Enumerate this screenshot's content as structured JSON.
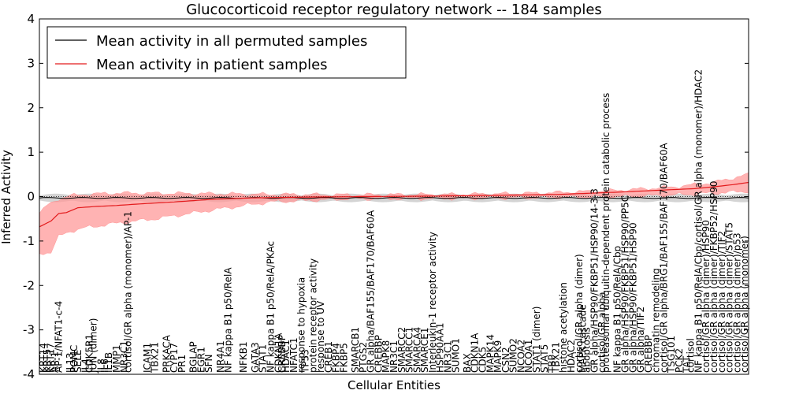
{
  "chart_data": {
    "type": "line",
    "title": "Glucocorticoid receptor regulatory network -- 184 samples",
    "xlabel": "Cellular Entities",
    "ylabel": "Inferred Activity",
    "ylim": [
      -4,
      4
    ],
    "yticks": [
      "-4",
      "-3",
      "-2",
      "-1",
      "0",
      "1",
      "2",
      "3",
      "4"
    ],
    "grid": false,
    "legend_position": "upper-left",
    "colors": {
      "permuted": "#000000",
      "patient": "#e31a1c",
      "patient_band": "#ff9a9a",
      "permuted_band": "#cfcfcf"
    },
    "series": [
      {
        "name": "Mean activity in all permuted samples",
        "mean": -0.03,
        "band": 0.08
      },
      {
        "name": "Mean activity in patient samples",
        "control_points": [
          [
            0,
            -0.68
          ],
          [
            3,
            -0.55
          ],
          [
            5,
            -0.38
          ],
          [
            7,
            -0.36
          ],
          [
            10,
            -0.25
          ],
          [
            15,
            -0.22
          ],
          [
            20,
            -0.2
          ],
          [
            25,
            -0.17
          ],
          [
            35,
            -0.12
          ],
          [
            45,
            -0.06
          ],
          [
            55,
            -0.03
          ],
          [
            70,
            -0.01
          ],
          [
            85,
            0.0
          ],
          [
            100,
            0.01
          ],
          [
            120,
            0.03
          ],
          [
            135,
            0.05
          ],
          [
            150,
            0.1
          ],
          [
            160,
            0.14
          ],
          [
            170,
            0.18
          ],
          [
            175,
            0.22
          ],
          [
            180,
            0.27
          ],
          [
            184,
            0.32
          ]
        ],
        "band_upper": [
          [
            0,
            -0.38
          ],
          [
            2,
            -0.2
          ],
          [
            5,
            -0.05
          ],
          [
            8,
            0.02
          ],
          [
            12,
            0.05
          ],
          [
            20,
            0.08
          ],
          [
            40,
            0.07
          ],
          [
            60,
            0.05
          ],
          [
            80,
            0.04
          ],
          [
            110,
            0.05
          ],
          [
            130,
            0.08
          ],
          [
            150,
            0.14
          ],
          [
            165,
            0.22
          ],
          [
            175,
            0.32
          ],
          [
            184,
            0.5
          ]
        ],
        "band_lower": [
          [
            0,
            -1.28
          ],
          [
            3,
            -1.25
          ],
          [
            5,
            -0.9
          ],
          [
            8,
            -0.78
          ],
          [
            12,
            -0.7
          ],
          [
            20,
            -0.6
          ],
          [
            30,
            -0.5
          ],
          [
            45,
            -0.3
          ],
          [
            60,
            -0.12
          ],
          [
            80,
            -0.05
          ],
          [
            110,
            -0.04
          ],
          [
            130,
            -0.02
          ],
          [
            150,
            0.0
          ],
          [
            165,
            0.04
          ],
          [
            175,
            0.08
          ],
          [
            184,
            0.12
          ]
        ]
      }
    ],
    "x_count": 184,
    "x_tick_labels": [
      {
        "i": 1,
        "label": "KRT14"
      },
      {
        "i": 2,
        "label": "KRT5"
      },
      {
        "i": 3,
        "label": "KRT17"
      },
      {
        "i": 4,
        "label": "AP-1"
      },
      {
        "i": 5,
        "label": "AP-1/NFAT1-c-4"
      },
      {
        "i": 8,
        "label": "IL13"
      },
      {
        "i": 9,
        "label": "POMC"
      },
      {
        "i": 10,
        "label": "SELE"
      },
      {
        "i": 12,
        "label": "IL4"
      },
      {
        "i": 13,
        "label": "CDK5R1"
      },
      {
        "i": 14,
        "label": "JUN (dimer)"
      },
      {
        "i": 16,
        "label": "IL8"
      },
      {
        "i": 17,
        "label": "IL6"
      },
      {
        "i": 18,
        "label": "IL1B"
      },
      {
        "i": 20,
        "label": "MMP1"
      },
      {
        "i": 22,
        "label": "NR3C1"
      },
      {
        "i": 23,
        "label": "cortisol/GR alpha (monomer)/AP-1"
      },
      {
        "i": 28,
        "label": "ICAM1"
      },
      {
        "i": 30,
        "label": "TBX21"
      },
      {
        "i": 33,
        "label": "PRKACA"
      },
      {
        "i": 35,
        "label": "CYP17"
      },
      {
        "i": 37,
        "label": "PR1"
      },
      {
        "i": 40,
        "label": "BGLAP"
      },
      {
        "i": 42,
        "label": "EGR1"
      },
      {
        "i": 44,
        "label": "SFN"
      },
      {
        "i": 47,
        "label": "NR4A1"
      },
      {
        "i": 49,
        "label": "NF kappa B1 p50/RelA"
      },
      {
        "i": 53,
        "label": "NFKB1"
      },
      {
        "i": 56,
        "label": "GATA3"
      },
      {
        "i": 58,
        "label": "STAT1"
      },
      {
        "i": 60,
        "label": "NF kappa B1 p50/RelA/PKAc"
      },
      {
        "i": 62,
        "label": "CDKN1A"
      },
      {
        "i": 63,
        "label": "CREBBP"
      },
      {
        "i": 64,
        "label": "HDAC1"
      },
      {
        "i": 66,
        "label": "NFATC1"
      },
      {
        "i": 68,
        "label": "response to hypoxia"
      },
      {
        "i": 69,
        "label": "TP53"
      },
      {
        "i": 71,
        "label": "protein receptor activity"
      },
      {
        "i": 73,
        "label": "response to UV"
      },
      {
        "i": 75,
        "label": "CREB1"
      },
      {
        "i": 77,
        "label": "FKBP4"
      },
      {
        "i": 79,
        "label": "FKBP5"
      },
      {
        "i": 82,
        "label": "SMARCB1"
      },
      {
        "i": 84,
        "label": "PTGS2"
      },
      {
        "i": 86,
        "label": "GR alpha/BAF155/BAF170/BAF60A"
      },
      {
        "i": 88,
        "label": "CREBBP"
      },
      {
        "i": 90,
        "label": "MAPK8"
      },
      {
        "i": 92,
        "label": "NR3C1"
      },
      {
        "i": 94,
        "label": "SMARCC2"
      },
      {
        "i": 96,
        "label": "SMARCC1"
      },
      {
        "i": 98,
        "label": "SMARCA4"
      },
      {
        "i": 100,
        "label": "SMARCE1"
      },
      {
        "i": 102,
        "label": "Interleukin-1 receptor activity"
      },
      {
        "i": 104,
        "label": "HSP90AA1"
      },
      {
        "i": 106,
        "label": "NR3C1"
      },
      {
        "i": 108,
        "label": "SUMO1"
      },
      {
        "i": 111,
        "label": "BAX"
      },
      {
        "i": 113,
        "label": "CDKN1A"
      },
      {
        "i": 115,
        "label": "CDK5"
      },
      {
        "i": 117,
        "label": "MAPK14"
      },
      {
        "i": 119,
        "label": "MAPK9"
      },
      {
        "i": 121,
        "label": "CSN2"
      },
      {
        "i": 123,
        "label": "SUMO2"
      },
      {
        "i": 125,
        "label": "NCOA2"
      },
      {
        "i": 127,
        "label": "NCOA1"
      },
      {
        "i": 129,
        "label": "STAT1 (dimer)"
      },
      {
        "i": 131,
        "label": "STAT5"
      },
      {
        "i": 133,
        "label": "TBP"
      },
      {
        "i": 134,
        "label": "TBX21"
      },
      {
        "i": 136,
        "label": "histone acetylation"
      },
      {
        "i": 138,
        "label": "HDAC2"
      },
      {
        "i": 140,
        "label": "cortisol/GR alpha (dimer)"
      },
      {
        "i": 141,
        "label": "MAPK cascade"
      },
      {
        "i": 142,
        "label": "apoptosis"
      },
      {
        "i": 144,
        "label": "GR alpha/HSP90/FKBP51/HSP90/14-3-3"
      },
      {
        "i": 146,
        "label": "cortisol/GR alpha"
      },
      {
        "i": 147,
        "label": "proteasomal ubiquitin-dependent protein catabolic process"
      },
      {
        "i": 150,
        "label": "NF kappa B1 p50/RelA/Cbp"
      },
      {
        "i": 152,
        "label": "GR alpha/HSP90/FKBP51/HSP90/PP5C"
      },
      {
        "i": 154,
        "label": "GR alpha/HSP90/FKBP51/HSP90"
      },
      {
        "i": 156,
        "label": "GR alpha/TIF2"
      },
      {
        "i": 158,
        "label": "CREBBP"
      },
      {
        "i": 160,
        "label": "chromatin remodeling"
      },
      {
        "i": 162,
        "label": "cortisol/GR alpha/BRG1/BAF155/BAF170/BAF60A"
      },
      {
        "i": 164,
        "label": "TSG101"
      },
      {
        "i": 166,
        "label": "PCK2"
      },
      {
        "i": 168,
        "label": "TAT"
      },
      {
        "i": 169,
        "label": "cortisol"
      },
      {
        "i": 171,
        "label": "NF kappa B1 p50/RelA/Cbp/cortisol/GR alpha (monomer)/HDAC2"
      },
      {
        "i": 173,
        "label": "cortisol/GR alpha (dimer)/HSP90"
      },
      {
        "i": 175,
        "label": "cortisol/GR alpha (dimer)/FKBP52/HSP90"
      },
      {
        "i": 177,
        "label": "cortisol/GR alpha (dimer)/TIF2"
      },
      {
        "i": 179,
        "label": "cortisol/GR alpha (dimer)/STAT5"
      },
      {
        "i": 181,
        "label": "cortisol/GR alpha (dimer)/p53"
      },
      {
        "i": 183,
        "label": "cortisol/GR alpha (monomer)"
      }
    ]
  }
}
